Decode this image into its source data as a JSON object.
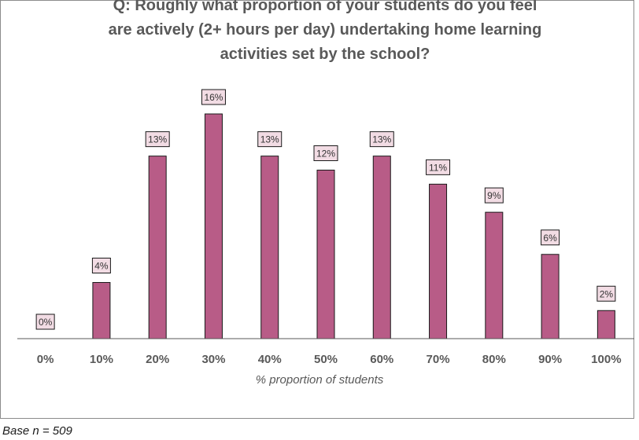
{
  "chart_data": {
    "type": "bar",
    "title_lines": [
      "Q: Roughly what proportion of your students do you feel",
      "are actively (2+ hours per day) undertaking home learning",
      "activities set by the school?"
    ],
    "categories": [
      "0%",
      "10%",
      "20%",
      "30%",
      "40%",
      "50%",
      "60%",
      "70%",
      "80%",
      "90%",
      "100%"
    ],
    "values": [
      0,
      4,
      13,
      16,
      13,
      12,
      13,
      11,
      9,
      6,
      2
    ],
    "value_labels": [
      "0%",
      "4%",
      "13%",
      "16%",
      "13%",
      "12%",
      "13%",
      "11%",
      "9%",
      "6%",
      "2%"
    ],
    "xlabel": "% proportion of students",
    "ylabel": "",
    "ylim": [
      0,
      16
    ],
    "grid": false,
    "legend": "none",
    "bar_color": "#b85c87",
    "label_fill": "#f2dce4"
  },
  "footnote": "Base n = 509"
}
